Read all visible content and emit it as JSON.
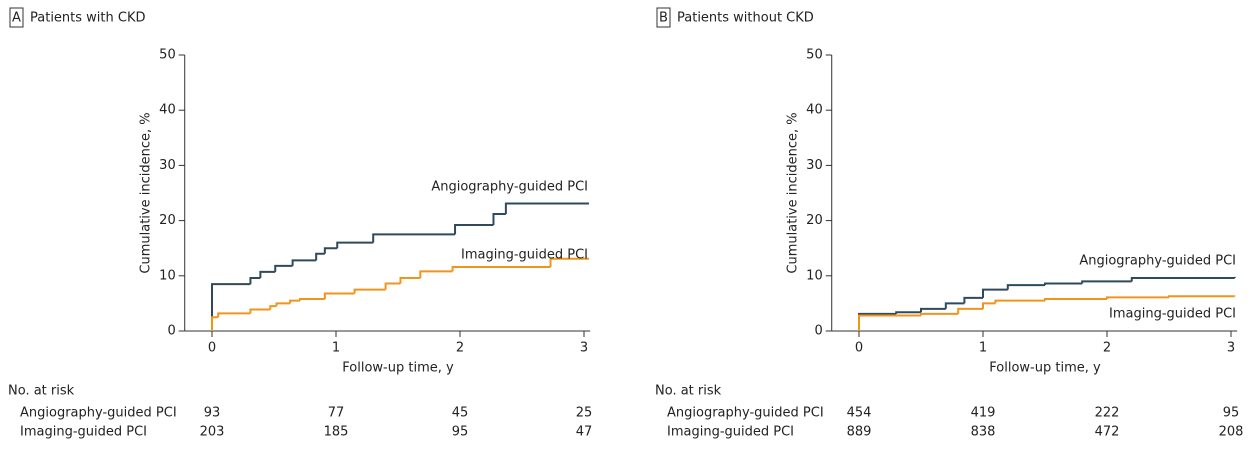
{
  "chart_data": [
    {
      "type": "step",
      "panel": "A",
      "title": "Patients with CKD",
      "x_label": "Follow-up time, y",
      "y_label": "Cumulative incidence, %",
      "xlim": [
        -0.22,
        3.05
      ],
      "xticks": [
        0,
        1,
        2,
        3
      ],
      "ylim": [
        0,
        50
      ],
      "yticks": [
        0,
        10,
        20,
        30,
        40,
        50
      ],
      "series": [
        {
          "name": "Angiography-guided PCI",
          "color": "#2e4a5c",
          "x": [
            0,
            0,
            0.31,
            0.39,
            0.51,
            0.65,
            0.84,
            0.91,
            1.01,
            1.3,
            1.96,
            2.27,
            2.37,
            3.04
          ],
          "values": [
            0,
            8.5,
            9.6,
            10.7,
            11.8,
            12.8,
            14,
            15,
            16,
            17.5,
            19.2,
            21.2,
            23.1,
            23.1
          ]
        },
        {
          "name": "Imaging-guided PCI",
          "color": "#f0951c",
          "x": [
            0,
            0,
            0.05,
            0.31,
            0.47,
            0.52,
            0.63,
            0.71,
            0.91,
            1.15,
            1.4,
            1.52,
            1.68,
            1.94,
            2.73,
            3.04
          ],
          "values": [
            0,
            2.5,
            3.2,
            3.9,
            4.5,
            5,
            5.5,
            5.8,
            6.8,
            7.5,
            8.6,
            9.6,
            10.8,
            11.6,
            13.1,
            13.1
          ]
        }
      ],
      "risk_table": {
        "title": "No. at risk",
        "rows": [
          {
            "name": "Angiography-guided PCI",
            "values": [
              93,
              77,
              45,
              25
            ]
          },
          {
            "name": "Imaging-guided PCI",
            "values": [
              203,
              185,
              95,
              47
            ]
          }
        ]
      }
    },
    {
      "type": "step",
      "panel": "B",
      "title": "Patients without CKD",
      "x_label": "Follow-up time, y",
      "y_label": "Cumulative incidence, %",
      "xlim": [
        -0.22,
        3.05
      ],
      "xticks": [
        0,
        1,
        2,
        3
      ],
      "ylim": [
        0,
        50
      ],
      "yticks": [
        0,
        10,
        20,
        30,
        40,
        50
      ],
      "series": [
        {
          "name": "Angiography-guided PCI",
          "color": "#2e4a5c",
          "x": [
            0,
            0,
            0.3,
            0.5,
            0.7,
            0.85,
            1.0,
            1.2,
            1.5,
            1.8,
            2.2,
            3.03
          ],
          "values": [
            0,
            3.1,
            3.4,
            4,
            5,
            6,
            7.5,
            8.3,
            8.6,
            9,
            9.6,
            9.8
          ]
        },
        {
          "name": "Imaging-guided PCI",
          "color": "#f0951c",
          "x": [
            0,
            0,
            0.5,
            0.8,
            1.0,
            1.1,
            1.5,
            2.0,
            2.5,
            3.03
          ],
          "values": [
            0,
            2.8,
            3.1,
            4,
            5,
            5.5,
            5.8,
            6.1,
            6.3,
            6.4
          ]
        }
      ],
      "risk_table": {
        "title": "No. at risk",
        "rows": [
          {
            "name": "Angiography-guided PCI",
            "values": [
              454,
              419,
              222,
              95
            ]
          },
          {
            "name": "Imaging-guided PCI",
            "values": [
              889,
              838,
              472,
              208
            ]
          }
        ]
      }
    }
  ]
}
